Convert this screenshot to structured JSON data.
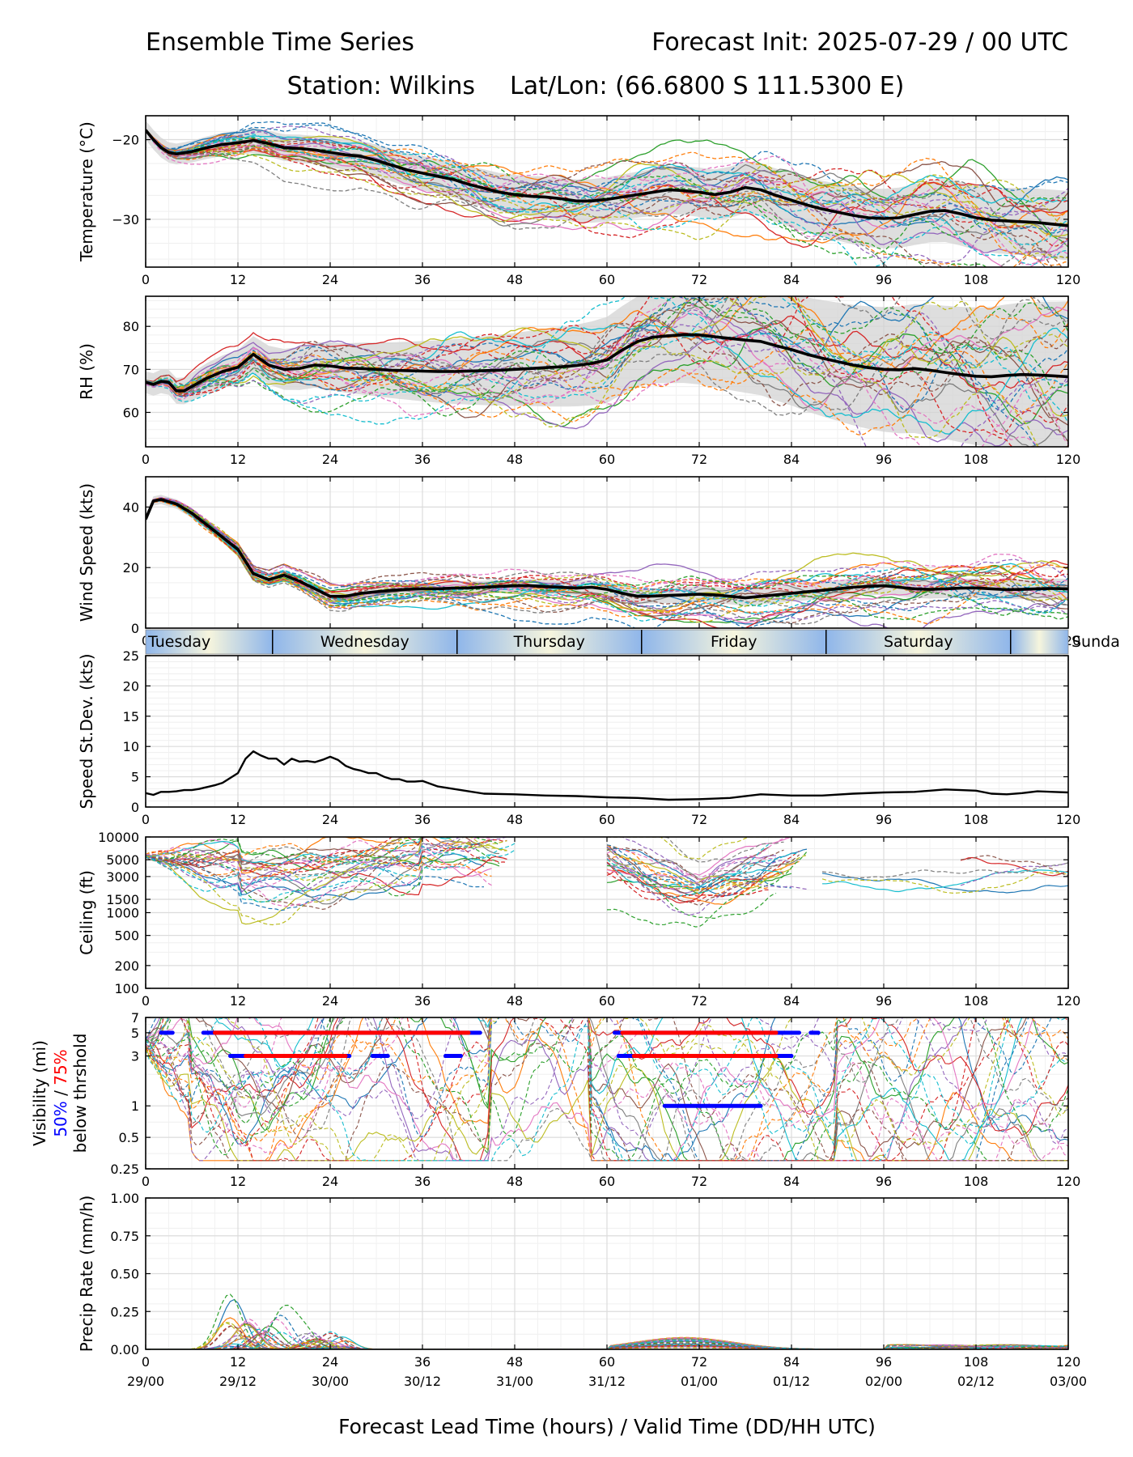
{
  "header": {
    "title_left": "Ensemble Time Series",
    "title_right": "Forecast Init: 2025-07-29 / 00 UTC",
    "station": "Station: Wilkins",
    "latlon": "Lat/Lon: (66.6800 S 111.5300 E)"
  },
  "x_axis": {
    "ticks": [
      0,
      12,
      24,
      36,
      48,
      60,
      72,
      84,
      96,
      108,
      120
    ],
    "valid_labels": [
      "29/00",
      "29/12",
      "30/00",
      "30/12",
      "31/00",
      "31/12",
      "01/00",
      "01/12",
      "02/00",
      "02/12",
      "03/00"
    ],
    "xlabel": "Forecast Lead Time (hours) / Valid Time (DD/HH UTC)",
    "range": [
      0,
      120
    ]
  },
  "day_band": {
    "labels": [
      "Tuesday",
      "Wednesday",
      "Thursday",
      "Friday",
      "Saturday",
      "Sunda"
    ],
    "separators": [
      16.5,
      40.5,
      64.5,
      88.5,
      112.5
    ],
    "label_x": [
      4.5,
      28.5,
      52.5,
      76.5,
      100.5,
      124.5
    ]
  },
  "colors": {
    "mean": "#000000",
    "spread": "#d3d3d3",
    "members": [
      "#1f77b4",
      "#ff7f0e",
      "#2ca02c",
      "#d62728",
      "#9467bd",
      "#8c564b",
      "#e377c2",
      "#7f7f7f",
      "#bcbd22",
      "#17becf"
    ],
    "vis50": "#0000ff",
    "vis75": "#ff0000"
  },
  "chart_data": [
    {
      "id": "temperature",
      "type": "line",
      "ylabel": "Temperature (°C)",
      "ylim": [
        -36,
        -17
      ],
      "yticks": [
        -20,
        -30
      ],
      "tick_labels": [
        "−20",
        "−30"
      ],
      "x": [
        0,
        1,
        2,
        3,
        4,
        6,
        8,
        10,
        12,
        14,
        16,
        18,
        20,
        22,
        24,
        26,
        28,
        30,
        32,
        34,
        36,
        38,
        40,
        42,
        44,
        46,
        48,
        50,
        52,
        54,
        56,
        58,
        60,
        62,
        64,
        66,
        68,
        70,
        72,
        74,
        76,
        78,
        80,
        82,
        84,
        86,
        88,
        90,
        92,
        94,
        96,
        98,
        100,
        102,
        104,
        106,
        108,
        110,
        112,
        114,
        116,
        118,
        120
      ],
      "mean": [
        -18.8,
        -20,
        -21,
        -21.6,
        -21.8,
        -21.5,
        -21,
        -20.6,
        -20.4,
        -20.1,
        -20.5,
        -21,
        -21.1,
        -21.3,
        -21.6,
        -21.9,
        -22.1,
        -22.6,
        -23.2,
        -23.8,
        -24.2,
        -24.6,
        -25,
        -25.6,
        -26.1,
        -26.6,
        -26.9,
        -27.1,
        -27.2,
        -27.4,
        -27.7,
        -27.7,
        -27.5,
        -27.2,
        -26.9,
        -26.6,
        -26.3,
        -26.4,
        -26.6,
        -26.9,
        -26.6,
        -26,
        -26.3,
        -27,
        -27.6,
        -28.2,
        -28.7,
        -29.1,
        -29.5,
        -29.8,
        -29.9,
        -29.8,
        -29.4,
        -29,
        -28.9,
        -29.3,
        -29.8,
        -30.1,
        -30.2,
        -30.3,
        -30.4,
        -30.6,
        -30.8
      ],
      "spread": 1.2,
      "spread_growth": 0.022,
      "member_amp": 1.0
    },
    {
      "id": "rh",
      "type": "line",
      "ylabel": "RH (%)",
      "ylim": [
        52,
        87
      ],
      "yticks": [
        60,
        70,
        80
      ],
      "tick_labels": [
        "60",
        "70",
        "80"
      ],
      "x": [
        0,
        1,
        2,
        3,
        4,
        5,
        6,
        8,
        10,
        12,
        14,
        16,
        18,
        20,
        22,
        24,
        26,
        28,
        30,
        32,
        34,
        36,
        38,
        40,
        42,
        44,
        46,
        48,
        50,
        52,
        54,
        56,
        58,
        60,
        62,
        64,
        66,
        68,
        70,
        72,
        74,
        76,
        78,
        80,
        82,
        84,
        86,
        88,
        90,
        92,
        94,
        96,
        98,
        100,
        102,
        104,
        106,
        108,
        110,
        112,
        114,
        116,
        118,
        120
      ],
      "mean": [
        67,
        66.5,
        67.2,
        67,
        65,
        65,
        66,
        68,
        69.5,
        70.5,
        73.5,
        71,
        70,
        70.2,
        71,
        70.8,
        70.3,
        70.2,
        70,
        69.8,
        69.7,
        69.6,
        69.5,
        69.5,
        69.6,
        69.7,
        69.8,
        70,
        70.2,
        70.4,
        70.6,
        70.9,
        71.4,
        72.2,
        74.5,
        76.5,
        77.5,
        77.8,
        78.1,
        78,
        77.6,
        77.2,
        76.8,
        76.5,
        75.5,
        74.6,
        73.5,
        72.6,
        71.8,
        71,
        70.4,
        70,
        69.9,
        70.2,
        69.8,
        69.3,
        68.8,
        68.4,
        68.3,
        68.6,
        68.8,
        68.7,
        68.5,
        68.3
      ],
      "spread": 2.5,
      "spread_growth": 0.05,
      "member_amp": 3.0
    },
    {
      "id": "wind",
      "type": "line",
      "ylabel": "Wind Speed (kts)",
      "ylim": [
        0,
        50
      ],
      "yticks": [
        0,
        20,
        40
      ],
      "tick_labels": [
        "0",
        "20",
        "40"
      ],
      "x": [
        0,
        1,
        2,
        4,
        6,
        8,
        10,
        12,
        14,
        16,
        18,
        20,
        22,
        24,
        26,
        28,
        30,
        32,
        34,
        36,
        38,
        40,
        42,
        44,
        46,
        48,
        50,
        52,
        54,
        56,
        58,
        60,
        62,
        64,
        66,
        68,
        70,
        72,
        74,
        76,
        78,
        80,
        82,
        84,
        86,
        88,
        90,
        92,
        94,
        96,
        98,
        100,
        102,
        104,
        106,
        108,
        110,
        112,
        114,
        116,
        118,
        120
      ],
      "mean": [
        36,
        42,
        42.5,
        41,
        38,
        34,
        30,
        26,
        18,
        16,
        17.5,
        15.5,
        13,
        10.5,
        10.5,
        11.5,
        12,
        12.5,
        12.8,
        13,
        13,
        13.2,
        13.3,
        13.5,
        13.8,
        14,
        14,
        13.7,
        13.5,
        13.2,
        13.5,
        12.8,
        11.5,
        10.5,
        10.6,
        10.8,
        11,
        11.2,
        11,
        10.5,
        10,
        10.5,
        11,
        11.5,
        12,
        12.5,
        13,
        13.5,
        13.8,
        14,
        13.5,
        13,
        12.8,
        13,
        13.2,
        13.3,
        13,
        12.7,
        12.8,
        13,
        13.1,
        13
      ],
      "spread": 1.5,
      "spread_growth": 0.01,
      "member_amp": 1.6
    },
    {
      "id": "speed_sd",
      "type": "line",
      "ylabel": "Speed St.Dev. (kts)",
      "ylim": [
        0,
        25
      ],
      "yticks": [
        0,
        5,
        10,
        15,
        20,
        25
      ],
      "tick_labels": [
        "0",
        "5",
        "10",
        "15",
        "20",
        "25"
      ],
      "x": [
        0,
        1,
        2,
        3,
        4,
        5,
        6,
        7,
        8,
        9,
        10,
        11,
        12,
        13,
        14,
        15,
        16,
        17,
        18,
        19,
        20,
        21,
        22,
        23,
        24,
        25,
        26,
        27,
        28,
        29,
        30,
        31,
        32,
        33,
        34,
        35,
        36,
        38,
        40,
        42,
        44,
        48,
        52,
        56,
        60,
        64,
        68,
        72,
        76,
        80,
        84,
        88,
        92,
        96,
        100,
        104,
        108,
        110,
        112,
        114,
        116,
        118,
        120
      ],
      "values": [
        2.3,
        2.0,
        2.5,
        2.5,
        2.6,
        2.8,
        2.8,
        3.0,
        3.3,
        3.6,
        4.0,
        4.8,
        5.6,
        8.0,
        9.2,
        8.5,
        8.0,
        8.0,
        7.0,
        8.0,
        7.5,
        7.6,
        7.4,
        7.8,
        8.3,
        7.8,
        6.8,
        6.3,
        6.0,
        5.6,
        5.6,
        5.0,
        4.6,
        4.6,
        4.2,
        4.2,
        4.3,
        3.4,
        3.0,
        2.6,
        2.2,
        2.1,
        1.9,
        1.8,
        1.6,
        1.5,
        1.2,
        1.3,
        1.5,
        2.1,
        1.9,
        1.9,
        2.2,
        2.4,
        2.5,
        2.9,
        2.7,
        2.2,
        2.1,
        2.3,
        2.6,
        2.5,
        2.4
      ]
    },
    {
      "id": "ceiling",
      "type": "line",
      "ylabel": "Ceiling (ft)",
      "scale": "log",
      "ylim": [
        100,
        10000
      ],
      "yticks": [
        100,
        200,
        500,
        1000,
        1500,
        3000,
        5000,
        10000
      ],
      "tick_labels": [
        "100",
        "200",
        "500",
        "1000",
        "1500",
        "3000",
        "5000",
        "10000"
      ]
    },
    {
      "id": "visibility",
      "type": "line",
      "ylabel_lines": [
        "Visibility (mi)",
        "50%",
        "75%",
        "below thrshold"
      ],
      "scale": "log",
      "ylim": [
        0.25,
        7
      ],
      "yticks": [
        0.25,
        0.5,
        1,
        3,
        5,
        7
      ],
      "tick_labels": [
        "0.25",
        "0.5",
        "1",
        "3",
        "5",
        "7"
      ],
      "threshold_50": [
        {
          "y": 5,
          "x0": 2,
          "x1": 3.5
        },
        {
          "y": 5,
          "x0": 7.5,
          "x1": 43.5
        },
        {
          "y": 3,
          "x0": 11,
          "x1": 26.5
        },
        {
          "y": 3,
          "x0": 29.5,
          "x1": 31.5
        },
        {
          "y": 3,
          "x0": 39,
          "x1": 41
        },
        {
          "y": 5,
          "x0": 61,
          "x1": 85
        },
        {
          "y": 5,
          "x0": 86.5,
          "x1": 87.5
        },
        {
          "y": 3,
          "x0": 61.5,
          "x1": 84
        },
        {
          "y": 1,
          "x0": 67.5,
          "x1": 80
        }
      ],
      "threshold_75": [
        {
          "y": 5,
          "x0": 9,
          "x1": 42
        },
        {
          "y": 3,
          "x0": 13,
          "x1": 26
        },
        {
          "y": 5,
          "x0": 62,
          "x1": 82
        },
        {
          "y": 3,
          "x0": 63.5,
          "x1": 82
        }
      ]
    },
    {
      "id": "precip",
      "type": "line",
      "ylabel": "Precip Rate (mm/h)",
      "ylim": [
        0,
        1
      ],
      "yticks": [
        0,
        0.25,
        0.5,
        0.75,
        1
      ],
      "tick_labels": [
        "0.00",
        "0.25",
        "0.50",
        "0.75",
        "1.00"
      ]
    }
  ]
}
